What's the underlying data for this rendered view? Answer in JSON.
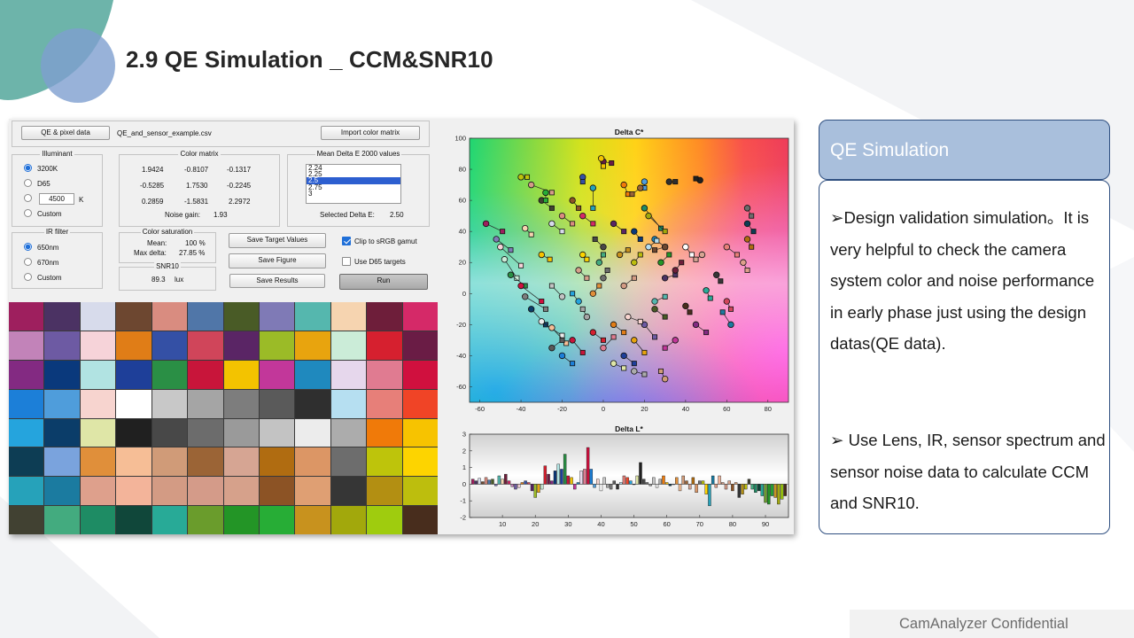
{
  "slide": {
    "title": "2.9  QE Simulation _ CCM&SNR10",
    "footer": "CamAnalyzer Confidential"
  },
  "app": {
    "qe_button": "QE & pixel data",
    "file_name": "QE_and_sensor_example.csv",
    "import_button": "Import color matrix",
    "illuminant": {
      "title": "Illuminant",
      "options": [
        "3200K",
        "D65",
        "",
        "Custom"
      ],
      "kelvin_value": "4500",
      "kelvin_unit": "K",
      "selected": "3200K"
    },
    "ir_filter": {
      "title": "IR filter",
      "options": [
        "650nm",
        "670nm",
        "Custom"
      ],
      "selected": "650nm"
    },
    "color_matrix": {
      "title": "Color matrix",
      "rows": [
        [
          "1.9424",
          "-0.8107",
          "-0.1317"
        ],
        [
          "-0.5285",
          "1.7530",
          "-0.2245"
        ],
        [
          "0.2859",
          "-1.5831",
          "2.2972"
        ]
      ],
      "noise_gain_label": "Noise gain:",
      "noise_gain_value": "1.93"
    },
    "delta_e": {
      "title": "Mean Delta E 2000 values",
      "items": [
        "2.24",
        "2.25",
        "2.5",
        "2.75",
        "3"
      ],
      "selected": "2.5",
      "selected_label": "Selected Delta E:",
      "selected_value": "2.50"
    },
    "color_saturation": {
      "title": "Color saturation",
      "mean_label": "Mean:",
      "mean_value": "100 %",
      "max_label": "Max delta:",
      "max_value": "27.85 %"
    },
    "snr10": {
      "title": "SNR10",
      "value": "89.3",
      "unit": "lux"
    },
    "buttons": {
      "save_target": "Save Target Values",
      "save_figure": "Save Figure",
      "save_results": "Save Results",
      "run": "Run"
    },
    "checkboxes": {
      "clip_label": "Clip to sRGB gamut",
      "clip_checked": true,
      "d65_label": "Use D65 targets",
      "d65_checked": false
    },
    "swatch_colors": [
      [
        "#9e1f5e",
        "#4b3263",
        "#d7dbeb",
        "#6d4730",
        "#d98c80",
        "#5076a8",
        "#495b26",
        "#7f7ab6",
        "#55b7ae",
        "#f6d4b0",
        "#6e1e3a",
        "#d52968"
      ],
      [
        "#c283b9",
        "#6d5aa3",
        "#f6d3d9",
        "#e07d17",
        "#3450a5",
        "#d0455a",
        "#5a2565",
        "#9bbb27",
        "#e8a40e",
        "#cbecd8",
        "#d6202f",
        "#6a1c45"
      ],
      [
        "#832a82",
        "#0a397c",
        "#b1e3e2",
        "#1e3f99",
        "#2a8f45",
        "#c8153a",
        "#f3c300",
        "#c2379a",
        "#1f89be",
        "#e6d7ec",
        "#e07b91",
        "#d0103e"
      ],
      [
        "#1c7fd8",
        "#4f9ddb",
        "#f7d4cf",
        "#ffffff",
        "#c8c8c8",
        "#a5a5a5",
        "#7d7d7d",
        "#5a5a5a",
        "#2f2f2f",
        "#b6dff1",
        "#e77f79",
        "#f04426"
      ],
      [
        "#25a4dd",
        "#0b3d69",
        "#dfe6a7",
        "#202020",
        "#484848",
        "#6c6c6c",
        "#9a9a9a",
        "#c3c3c3",
        "#ececec",
        "#acacac",
        "#f07a09",
        "#f7c300"
      ],
      [
        "#0d3d54",
        "#7aa3dd",
        "#e08f3a",
        "#f6be96",
        "#d09b78",
        "#9b6436",
        "#d6a593",
        "#b06c11",
        "#dc9665",
        "#6d6d6d",
        "#bec40b",
        "#fdd400"
      ],
      [
        "#26a2ba",
        "#1b7ba0",
        "#dea08c",
        "#f3b49a",
        "#d39b84",
        "#d49b89",
        "#d6a18b",
        "#8c5325",
        "#df9f73",
        "#363636",
        "#b38f12",
        "#bdbe0d"
      ],
      [
        "#414132",
        "#43ab7f",
        "#1e8c64",
        "#10473a",
        "#28aa97",
        "#6a9c2c",
        "#239526",
        "#27ad36",
        "#c8921e",
        "#a2a80c",
        "#9fcc0e",
        "#482d1d"
      ]
    ]
  },
  "chart_data": [
    {
      "type": "scatter",
      "title": "Delta C*",
      "xlabel": "",
      "ylabel": "",
      "xlim": [
        -65,
        90
      ],
      "ylim": [
        -70,
        100
      ],
      "xticks": [
        -60,
        -40,
        -20,
        0,
        20,
        40,
        60,
        80
      ],
      "yticks": [
        100,
        80,
        60,
        40,
        20,
        0,
        -20,
        -40,
        -60
      ],
      "background": "CIELAB a*b* color gamut",
      "pairs": [
        [
          [
            -57,
            45
          ],
          [
            -49,
            40
          ]
        ],
        [
          [
            -52,
            35
          ],
          [
            -45,
            28
          ]
        ],
        [
          [
            -50,
            30
          ],
          [
            -40,
            18
          ]
        ],
        [
          [
            -48,
            22
          ],
          [
            -42,
            10
          ]
        ],
        [
          [
            -45,
            12
          ],
          [
            -38,
            5
          ]
        ],
        [
          [
            -40,
            5
          ],
          [
            -30,
            -5
          ]
        ],
        [
          [
            -38,
            -2
          ],
          [
            -28,
            -10
          ]
        ],
        [
          [
            -35,
            -10
          ],
          [
            -28,
            -20
          ]
        ],
        [
          [
            -30,
            -18
          ],
          [
            -20,
            -27
          ]
        ],
        [
          [
            -25,
            -22
          ],
          [
            -18,
            -32
          ]
        ],
        [
          [
            -40,
            75
          ],
          [
            -37,
            75
          ]
        ],
        [
          [
            -35,
            70
          ],
          [
            -25,
            65
          ]
        ],
        [
          [
            -30,
            60
          ],
          [
            -25,
            55
          ]
        ],
        [
          [
            -28,
            65
          ],
          [
            -28,
            60
          ]
        ],
        [
          [
            -25,
            45
          ],
          [
            -20,
            40
          ]
        ],
        [
          [
            -38,
            42
          ],
          [
            -35,
            38
          ]
        ],
        [
          [
            -10,
            75
          ],
          [
            -10,
            72
          ]
        ],
        [
          [
            0,
            85
          ],
          [
            4,
            84
          ]
        ],
        [
          [
            -1,
            87
          ],
          [
            0,
            82
          ]
        ],
        [
          [
            20,
            72
          ],
          [
            20,
            68
          ]
        ],
        [
          [
            32,
            72
          ],
          [
            35,
            72
          ]
        ],
        [
          [
            47,
            73
          ],
          [
            45,
            74
          ]
        ],
        [
          [
            10,
            70
          ],
          [
            12,
            64
          ]
        ],
        [
          [
            18,
            68
          ],
          [
            14,
            64
          ]
        ],
        [
          [
            -5,
            68
          ],
          [
            -5,
            55
          ]
        ],
        [
          [
            -15,
            60
          ],
          [
            -12,
            55
          ]
        ],
        [
          [
            20,
            55
          ],
          [
            28,
            42
          ]
        ],
        [
          [
            22,
            50
          ],
          [
            30,
            40
          ]
        ],
        [
          [
            -20,
            50
          ],
          [
            -15,
            45
          ]
        ],
        [
          [
            -10,
            50
          ],
          [
            -5,
            45
          ]
        ],
        [
          [
            5,
            45
          ],
          [
            10,
            40
          ]
        ],
        [
          [
            15,
            40
          ],
          [
            18,
            35
          ]
        ],
        [
          [
            25,
            35
          ],
          [
            30,
            30
          ]
        ],
        [
          [
            40,
            30
          ],
          [
            43,
            25
          ]
        ],
        [
          [
            60,
            30
          ],
          [
            65,
            25
          ]
        ],
        [
          [
            70,
            55
          ],
          [
            72,
            50
          ]
        ],
        [
          [
            70,
            45
          ],
          [
            73,
            40
          ]
        ],
        [
          [
            70,
            35
          ],
          [
            72,
            30
          ]
        ],
        [
          [
            68,
            20
          ],
          [
            70,
            15
          ]
        ],
        [
          [
            55,
            12
          ],
          [
            57,
            8
          ]
        ],
        [
          [
            50,
            2
          ],
          [
            52,
            -3
          ]
        ],
        [
          [
            40,
            -8
          ],
          [
            42,
            -12
          ]
        ],
        [
          [
            25,
            -10
          ],
          [
            30,
            -15
          ]
        ],
        [
          [
            20,
            -20
          ],
          [
            25,
            -28
          ]
        ],
        [
          [
            15,
            -30
          ],
          [
            20,
            -38
          ]
        ],
        [
          [
            10,
            -40
          ],
          [
            15,
            -45
          ]
        ],
        [
          [
            0,
            -35
          ],
          [
            5,
            -28
          ]
        ],
        [
          [
            -8,
            -15
          ],
          [
            -10,
            -10
          ]
        ],
        [
          [
            -12,
            -5
          ],
          [
            -15,
            0
          ]
        ],
        [
          [
            -20,
            -2
          ],
          [
            -25,
            5
          ]
        ],
        [
          [
            -5,
            0
          ],
          [
            -2,
            5
          ]
        ],
        [
          [
            0,
            10
          ],
          [
            2,
            15
          ]
        ],
        [
          [
            10,
            5
          ],
          [
            15,
            10
          ]
        ],
        [
          [
            15,
            20
          ],
          [
            18,
            25
          ]
        ],
        [
          [
            28,
            20
          ],
          [
            32,
            25
          ]
        ],
        [
          [
            30,
            10
          ],
          [
            35,
            12
          ]
        ],
        [
          [
            25,
            -5
          ],
          [
            30,
            -2
          ]
        ],
        [
          [
            5,
            -20
          ],
          [
            10,
            -25
          ]
        ],
        [
          [
            -5,
            -25
          ],
          [
            0,
            -30
          ]
        ],
        [
          [
            -15,
            -30
          ],
          [
            -10,
            -38
          ]
        ],
        [
          [
            -20,
            -40
          ],
          [
            -15,
            -45
          ]
        ],
        [
          [
            -25,
            -35
          ],
          [
            -20,
            -30
          ]
        ],
        [
          [
            5,
            -45
          ],
          [
            10,
            -48
          ]
        ],
        [
          [
            15,
            -50
          ],
          [
            20,
            -52
          ]
        ],
        [
          [
            30,
            -55
          ],
          [
            28,
            -50
          ]
        ],
        [
          [
            -10,
            25
          ],
          [
            -8,
            22
          ]
        ],
        [
          [
            -12,
            15
          ],
          [
            -8,
            10
          ]
        ],
        [
          [
            -2,
            20
          ],
          [
            0,
            25
          ]
        ],
        [
          [
            8,
            25
          ],
          [
            12,
            28
          ]
        ],
        [
          [
            30,
            30
          ],
          [
            25,
            28
          ]
        ],
        [
          [
            35,
            15
          ],
          [
            38,
            20
          ]
        ],
        [
          [
            60,
            -5
          ],
          [
            62,
            -10
          ]
        ],
        [
          [
            45,
            -20
          ],
          [
            50,
            -25
          ]
        ],
        [
          [
            35,
            -30
          ],
          [
            30,
            -35
          ]
        ],
        [
          [
            12,
            -15
          ],
          [
            18,
            -18
          ]
        ],
        [
          [
            22,
            30
          ],
          [
            26,
            34
          ]
        ],
        [
          [
            0,
            30
          ],
          [
            -4,
            35
          ]
        ],
        [
          [
            -30,
            25
          ],
          [
            -26,
            22
          ]
        ],
        [
          [
            48,
            25
          ],
          [
            45,
            22
          ]
        ],
        [
          [
            62,
            -20
          ],
          [
            58,
            -12
          ]
        ]
      ]
    },
    {
      "type": "bar",
      "title": "Delta L*",
      "xlabel": "",
      "ylabel": "",
      "xlim": [
        0,
        97
      ],
      "ylim": [
        -2,
        3
      ],
      "xticks": [
        10,
        20,
        30,
        40,
        50,
        60,
        70,
        80,
        90
      ],
      "yticks": [
        3,
        2,
        1,
        0,
        -1,
        -2
      ],
      "values": [
        0.3,
        0.2,
        0.35,
        0.15,
        0.4,
        0.25,
        0.3,
        -0.1,
        0.5,
        0.3,
        0.6,
        0.2,
        -0.15,
        -0.3,
        -0.2,
        0.1,
        0.2,
        0.1,
        -0.4,
        -0.8,
        -0.5,
        -0.3,
        1.1,
        0.6,
        0.2,
        0.8,
        1.2,
        0.9,
        1.8,
        0.5,
        0.4,
        -0.3,
        0.1,
        0.8,
        0.9,
        2.2,
        0.9,
        -0.2,
        0.3,
        -0.4,
        0.4,
        -0.2,
        -0.3,
        0.2,
        -0.3,
        0.1,
        0.5,
        0.4,
        0.2,
        0.0,
        0.5,
        1.3,
        0.3,
        0.1,
        -0.1,
        0.4,
        -0.2,
        0.3,
        0.5,
        0.1,
        -0.1,
        0.0,
        0.4,
        -0.4,
        0.5,
        0.2,
        -0.3,
        0.4,
        -0.5,
        0.2,
        0.2,
        -0.6,
        -1.3,
        0.5,
        -0.2,
        0.5,
        0.1,
        -0.3,
        0.2,
        -0.4,
        0.1,
        -0.8,
        -0.6,
        -0.3,
        0.3,
        -0.3,
        -0.5,
        -0.4,
        -0.7,
        -1.1,
        -1.2,
        -0.7,
        -0.8,
        -1.2,
        -0.9,
        -0.7
      ]
    }
  ]
}
